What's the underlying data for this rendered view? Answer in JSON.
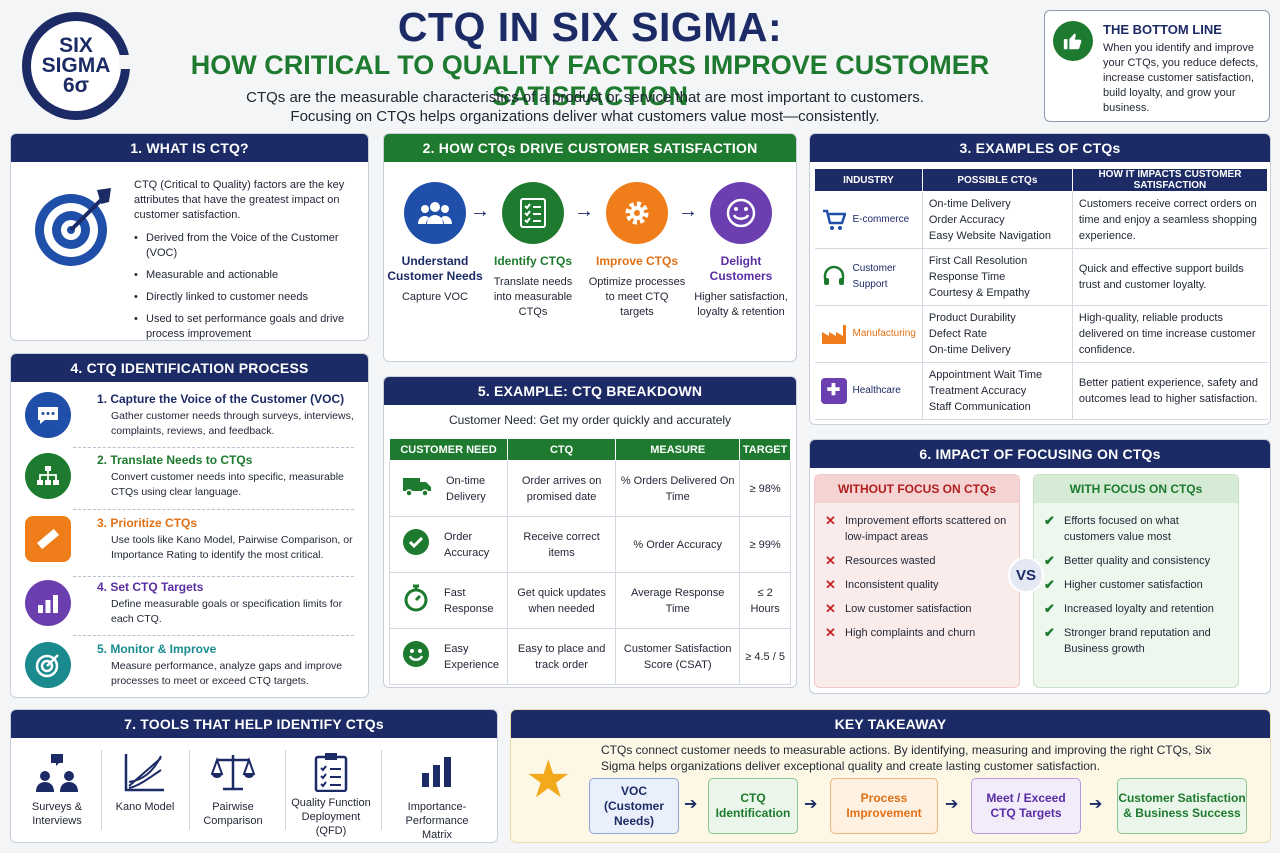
{
  "logo": {
    "line1": "SIX",
    "line2": "SIGMA",
    "line3": "6σ"
  },
  "header": {
    "title": "CTQ IN SIX SIGMA:",
    "subtitle": "HOW CRITICAL TO QUALITY FACTORS IMPROVE CUSTOMER SATISFACTION",
    "intro_line1": "CTQs are the measurable characteristics of a product or service that are most important to customers.",
    "intro_line2": "Focusing on CTQs helps organizations deliver what customers value most—consistently."
  },
  "bottom_line": {
    "title": "THE BOTTOM LINE",
    "text": "When you identify and improve your CTQs, you reduce defects, increase customer satisfaction, build loyalty, and grow your business."
  },
  "what_is": {
    "heading": "1. WHAT IS CTQ?",
    "definition": "CTQ (Critical to Quality) factors are the key attributes that have the greatest impact on customer satisfaction.",
    "bullets": [
      "Derived from the Voice of the Customer (VOC)",
      "Measurable and actionable",
      "Directly linked to customer needs",
      "Used to set performance goals and drive process improvement"
    ]
  },
  "drive": {
    "heading": "2. HOW CTQs DRIVE CUSTOMER SATISFACTION",
    "steps": [
      {
        "name": "Understand Customer Needs",
        "desc": "Capture VOC",
        "color": "#1f4fa8",
        "name_color": "#1c2b66"
      },
      {
        "name": "Identify CTQs",
        "desc": "Translate needs into measurable CTQs",
        "color": "#1e7a2e",
        "name_color": "#1e7a2e"
      },
      {
        "name": "Improve CTQs",
        "desc": "Optimize processes to meet CTQ targets",
        "color": "#ee7d1a",
        "name_color": "#e07015"
      },
      {
        "name": "Delight Customers",
        "desc": "Higher satisfaction, loyalty & retention",
        "color": "#6b3fb0",
        "name_color": "#5a2ea3"
      }
    ]
  },
  "examples": {
    "heading": "3. EXAMPLES OF CTQs",
    "columns": [
      "INDUSTRY",
      "POSSIBLE CTQs",
      "HOW IT IMPACTS CUSTOMER SATISFACTION"
    ],
    "rows": [
      {
        "industry": "E-commerce",
        "icon": "cart-icon",
        "color": "#1f4fa8",
        "ctqs": [
          "On-time Delivery",
          "Order Accuracy",
          "Easy Website Navigation"
        ],
        "impact": "Customers receive correct orders on time and enjoy a seamless shopping experience."
      },
      {
        "industry": "Customer Support",
        "icon": "headset-icon",
        "color": "#1e7a2e",
        "ctqs": [
          "First Call Resolution",
          "Response Time",
          "Courtesy & Empathy"
        ],
        "impact": "Quick and effective support builds trust and customer loyalty."
      },
      {
        "industry": "Manufacturing",
        "icon": "factory-icon",
        "color": "#ee7d1a",
        "ctqs": [
          "Product Durability",
          "Defect Rate",
          "On-time Delivery"
        ],
        "impact": "High-quality, reliable products delivered on time increase customer confidence."
      },
      {
        "industry": "Healthcare",
        "icon": "medical-cross-icon",
        "color": "#6b3fb0",
        "ctqs": [
          "Appointment Wait Time",
          "Treatment Accuracy",
          "Staff Communication"
        ],
        "impact": "Better patient experience, safety and outcomes lead to higher satisfaction."
      }
    ]
  },
  "process": {
    "heading": "4. CTQ IDENTIFICATION PROCESS",
    "steps": [
      {
        "name": "1.  Capture the Voice of the Customer (VOC)",
        "desc": "Gather customer needs through surveys, interviews, complaints, reviews, and feedback.",
        "color": "#1f4fa8"
      },
      {
        "name": "2.  Translate Needs to CTQs",
        "desc": "Convert customer needs into specific, measurable CTQs using clear language.",
        "color": "#1e7a2e"
      },
      {
        "name": "3.  Prioritize CTQs",
        "desc": "Use tools like Kano Model, Pairwise Comparison, or Importance Rating to identify the most critical.",
        "color": "#ee7d1a"
      },
      {
        "name": "4.  Set CTQ Targets",
        "desc": "Define measurable goals or specification limits for each CTQ.",
        "color": "#6b3fb0"
      },
      {
        "name": "5.  Monitor & Improve",
        "desc": "Measure performance, analyze gaps and improve processes to meet or exceed CTQ targets.",
        "color": "#1a8a8f"
      }
    ]
  },
  "breakdown": {
    "heading": "5. EXAMPLE: CTQ BREAKDOWN",
    "need": "Customer Need: Get my order quickly and accurately",
    "columns": [
      "CUSTOMER NEED",
      "CTQ",
      "MEASURE",
      "TARGET"
    ],
    "rows": [
      {
        "need": "On-time Delivery",
        "ctq": "Order arrives on promised date",
        "measure": "% Orders Delivered On Time",
        "target": "≥ 98%"
      },
      {
        "need": "Order Accuracy",
        "ctq": "Receive correct items",
        "measure": "% Order Accuracy",
        "target": "≥ 99%"
      },
      {
        "need": "Fast Response",
        "ctq": "Get quick updates when needed",
        "measure": "Average Response Time",
        "target": "≤ 2 Hours"
      },
      {
        "need": "Easy Experience",
        "ctq": "Easy to place and track order",
        "measure": "Customer Satisfaction Score (CSAT)",
        "target": "≥ 4.5 / 5"
      }
    ]
  },
  "impact": {
    "heading": "6. IMPACT OF FOCUSING ON CTQs",
    "without_title": "WITHOUT FOCUS ON CTQs",
    "without": [
      "Improvement efforts scattered on low-impact areas",
      "Resources wasted",
      "Inconsistent quality",
      "Low customer satisfaction",
      "High complaints and churn"
    ],
    "vs": "VS",
    "with_title": "WITH FOCUS ON CTQs",
    "with": [
      "Efforts focused on what customers value most",
      "Better quality and consistency",
      "Higher customer satisfaction",
      "Increased loyalty and retention",
      "Stronger brand reputation and Business growth"
    ]
  },
  "tools": {
    "heading": "7. TOOLS THAT HELP IDENTIFY CTQs",
    "items": [
      "Surveys & Interviews",
      "Kano Model",
      "Pairwise Comparison",
      "Quality Function Deployment (QFD)",
      "Importance-Performance Matrix"
    ]
  },
  "takeaway": {
    "heading": "KEY TAKEAWAY",
    "text": "CTQs connect customer needs to measurable actions. By identifying, measuring and improving the right CTQs, Six Sigma helps organizations deliver exceptional quality and create lasting customer satisfaction.",
    "flow": [
      {
        "label": "VOC (Customer Needs)",
        "color": "#1c2b66",
        "bg": "#eaf0fb",
        "border": "#8ea6d8"
      },
      {
        "label": "CTQ Identification",
        "color": "#1e7a2e",
        "bg": "#eaf6ea",
        "border": "#8cc58f"
      },
      {
        "label": "Process Improvement",
        "color": "#e07015",
        "bg": "#fff1e2",
        "border": "#f0b57a"
      },
      {
        "label": "Meet / Exceed CTQ Targets",
        "color": "#5a2ea3",
        "bg": "#f1ebfa",
        "border": "#b79be0"
      },
      {
        "label": "Customer Satisfaction & Business Success",
        "color": "#1e7a2e",
        "bg": "#eaf6ea",
        "border": "#8cc58f"
      }
    ]
  }
}
